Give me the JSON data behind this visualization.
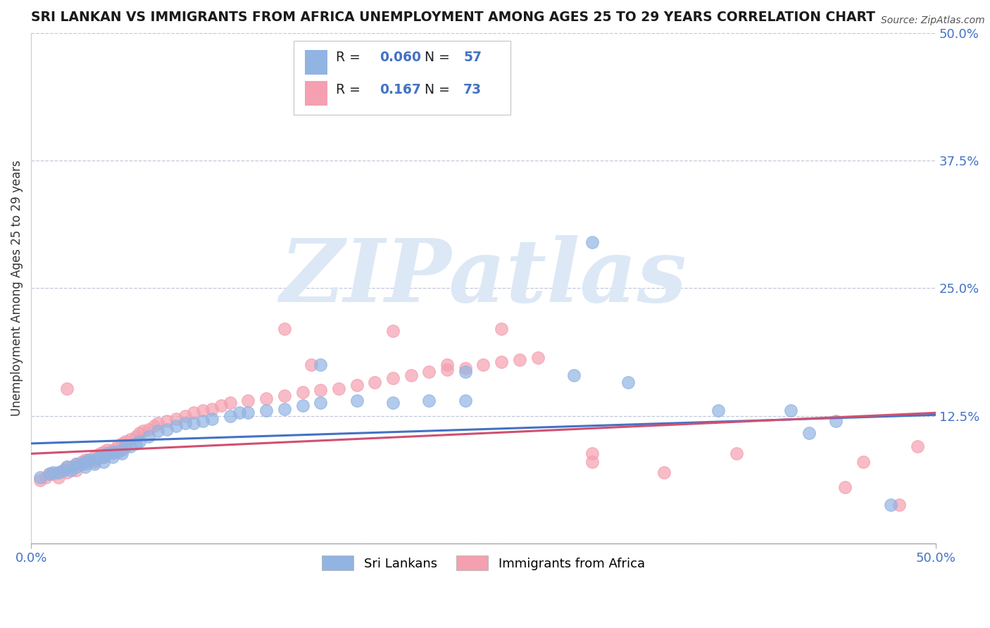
{
  "title": "SRI LANKAN VS IMMIGRANTS FROM AFRICA UNEMPLOYMENT AMONG AGES 25 TO 29 YEARS CORRELATION CHART",
  "source": "Source: ZipAtlas.com",
  "ylabel": "Unemployment Among Ages 25 to 29 years",
  "xlim": [
    0.0,
    0.5
  ],
  "ylim": [
    0.0,
    0.5
  ],
  "yticks": [
    0.0,
    0.125,
    0.25,
    0.375,
    0.5
  ],
  "ytick_labels": [
    "",
    "12.5%",
    "25.0%",
    "37.5%",
    "50.0%"
  ],
  "sri_color": "#92b4e3",
  "afr_color": "#f4a0b0",
  "sri_line_color": "#4472c4",
  "afr_line_color": "#d05070",
  "watermark_text": "ZIPatlas",
  "watermark_color": "#dce8f5",
  "legend_items": [
    {
      "label": "R = 0.060  N = 57",
      "color": "#92b4e3"
    },
    {
      "label": "R =  0.167  N = 73",
      "color": "#f4a0b0"
    }
  ],
  "sri_x": [
    0.005,
    0.01,
    0.012,
    0.015,
    0.018,
    0.02,
    0.022,
    0.025,
    0.025,
    0.028,
    0.03,
    0.03,
    0.032,
    0.035,
    0.035,
    0.038,
    0.04,
    0.04,
    0.042,
    0.045,
    0.045,
    0.048,
    0.05,
    0.05,
    0.052,
    0.055,
    0.058,
    0.06,
    0.065,
    0.07,
    0.075,
    0.08,
    0.085,
    0.09,
    0.095,
    0.1,
    0.11,
    0.115,
    0.12,
    0.13,
    0.14,
    0.15,
    0.16,
    0.18,
    0.2,
    0.22,
    0.24,
    0.16,
    0.24,
    0.3,
    0.33,
    0.38,
    0.42,
    0.445,
    0.475,
    0.31,
    0.43
  ],
  "sri_y": [
    0.065,
    0.068,
    0.07,
    0.07,
    0.072,
    0.075,
    0.072,
    0.078,
    0.075,
    0.078,
    0.08,
    0.075,
    0.082,
    0.082,
    0.078,
    0.085,
    0.085,
    0.08,
    0.088,
    0.09,
    0.085,
    0.09,
    0.092,
    0.088,
    0.095,
    0.095,
    0.098,
    0.1,
    0.105,
    0.11,
    0.112,
    0.115,
    0.118,
    0.118,
    0.12,
    0.122,
    0.125,
    0.128,
    0.128,
    0.13,
    0.132,
    0.135,
    0.138,
    0.14,
    0.138,
    0.14,
    0.14,
    0.175,
    0.168,
    0.165,
    0.158,
    0.13,
    0.13,
    0.12,
    0.038,
    0.295,
    0.108
  ],
  "afr_x": [
    0.005,
    0.008,
    0.01,
    0.012,
    0.015,
    0.015,
    0.018,
    0.02,
    0.02,
    0.022,
    0.025,
    0.025,
    0.028,
    0.03,
    0.03,
    0.032,
    0.035,
    0.035,
    0.038,
    0.04,
    0.04,
    0.042,
    0.045,
    0.045,
    0.048,
    0.05,
    0.052,
    0.055,
    0.058,
    0.06,
    0.062,
    0.065,
    0.068,
    0.07,
    0.075,
    0.08,
    0.085,
    0.09,
    0.095,
    0.1,
    0.105,
    0.11,
    0.12,
    0.13,
    0.14,
    0.15,
    0.16,
    0.17,
    0.18,
    0.19,
    0.2,
    0.21,
    0.22,
    0.23,
    0.24,
    0.25,
    0.26,
    0.27,
    0.28,
    0.14,
    0.2,
    0.26,
    0.31,
    0.35,
    0.39,
    0.45,
    0.49,
    0.155,
    0.23,
    0.31,
    0.46,
    0.48,
    0.02
  ],
  "afr_y": [
    0.062,
    0.065,
    0.068,
    0.068,
    0.07,
    0.065,
    0.072,
    0.075,
    0.07,
    0.075,
    0.078,
    0.072,
    0.08,
    0.082,
    0.078,
    0.082,
    0.085,
    0.08,
    0.088,
    0.09,
    0.085,
    0.092,
    0.092,
    0.088,
    0.095,
    0.098,
    0.1,
    0.102,
    0.105,
    0.108,
    0.11,
    0.112,
    0.115,
    0.118,
    0.12,
    0.122,
    0.125,
    0.128,
    0.13,
    0.132,
    0.135,
    0.138,
    0.14,
    0.142,
    0.145,
    0.148,
    0.15,
    0.152,
    0.155,
    0.158,
    0.162,
    0.165,
    0.168,
    0.17,
    0.172,
    0.175,
    0.178,
    0.18,
    0.182,
    0.21,
    0.208,
    0.21,
    0.088,
    0.07,
    0.088,
    0.055,
    0.095,
    0.175,
    0.175,
    0.08,
    0.08,
    0.038,
    0.152
  ],
  "sri_trendline": [
    0.098,
    0.126
  ],
  "afr_trendline": [
    0.088,
    0.128
  ]
}
